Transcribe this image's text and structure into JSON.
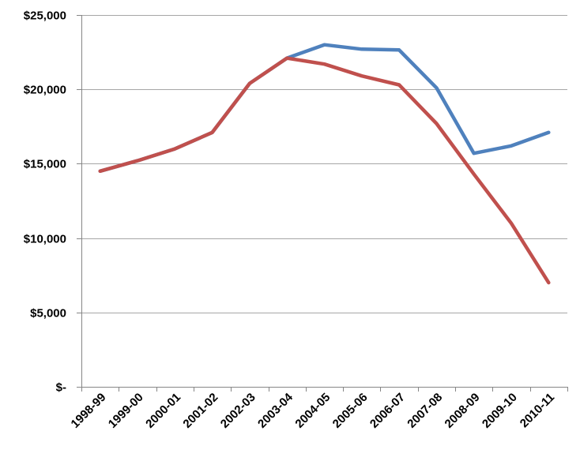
{
  "chart_data": {
    "type": "line",
    "title": "",
    "xlabel": "",
    "ylabel": "",
    "ylim": [
      0,
      25000
    ],
    "grid": true,
    "legend": "none",
    "categories": [
      "1998-99",
      "1999-00",
      "2000-01",
      "2001-02",
      "2002-03",
      "2003-04",
      "2004-05",
      "2005-06",
      "2006-07",
      "2007-08",
      "2008-09",
      "2009-10",
      "2010-11"
    ],
    "y_tick_labels": [
      "$-",
      "$5,000",
      "$10,000",
      "$15,000",
      "$20,000",
      "$25,000"
    ],
    "y_tick_values": [
      0,
      5000,
      10000,
      15000,
      20000,
      25000
    ],
    "series": [
      {
        "color": "#4f81bd",
        "values": [
          14500,
          15200,
          16000,
          17100,
          20400,
          22100,
          23000,
          22700,
          22650,
          20100,
          15700,
          16200,
          17100
        ]
      },
      {
        "color": "#c0504d",
        "values": [
          14500,
          15200,
          16000,
          17100,
          20400,
          22100,
          21700,
          20900,
          20300,
          17700,
          14300,
          11000,
          7000
        ]
      }
    ]
  }
}
